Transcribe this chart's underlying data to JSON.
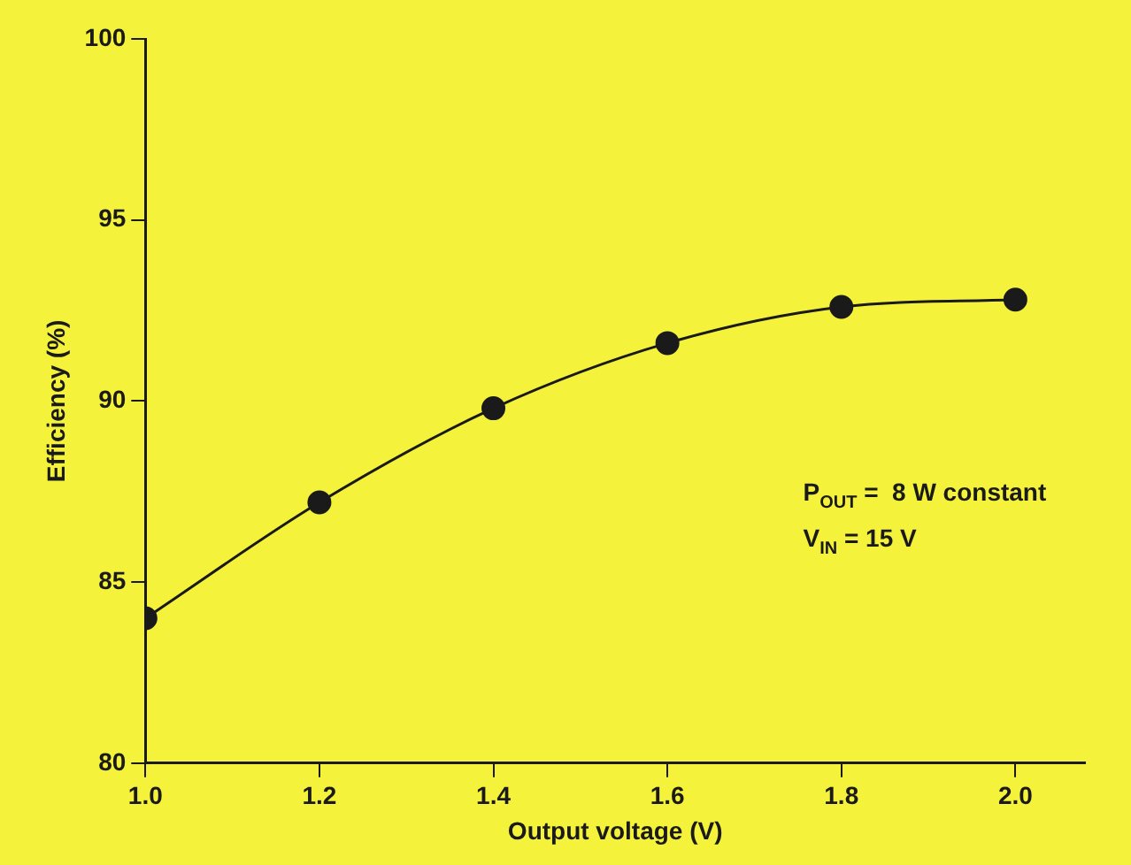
{
  "chart_data": {
    "type": "line",
    "xlabel": "Output voltage (V)",
    "ylabel": "Efficiency (%)",
    "x": [
      1.0,
      1.2,
      1.4,
      1.6,
      1.8,
      2.0
    ],
    "series": [
      {
        "color": "#1a1a1a",
        "values": [
          84.0,
          87.2,
          89.8,
          91.6,
          92.6,
          92.8
        ]
      }
    ],
    "xlim": [
      1.0,
      2.08
    ],
    "xticks": [
      {
        "value": 1.0,
        "label": "1.0"
      },
      {
        "value": 1.2,
        "label": "1.2"
      },
      {
        "value": 1.4,
        "label": "1.4"
      },
      {
        "value": 1.6,
        "label": "1.6"
      },
      {
        "value": 1.8,
        "label": "1.8"
      },
      {
        "value": 2.0,
        "label": "2.0"
      }
    ],
    "ylim": [
      80,
      100
    ],
    "yticks": [
      80,
      85,
      90,
      95,
      100
    ],
    "grid": false,
    "legend": false,
    "marker": "circle",
    "line_style": "solid",
    "annotations": [
      "P$_{OUT}$ =  8 W constant",
      "V$_{IN}$ = 15 V"
    ]
  }
}
